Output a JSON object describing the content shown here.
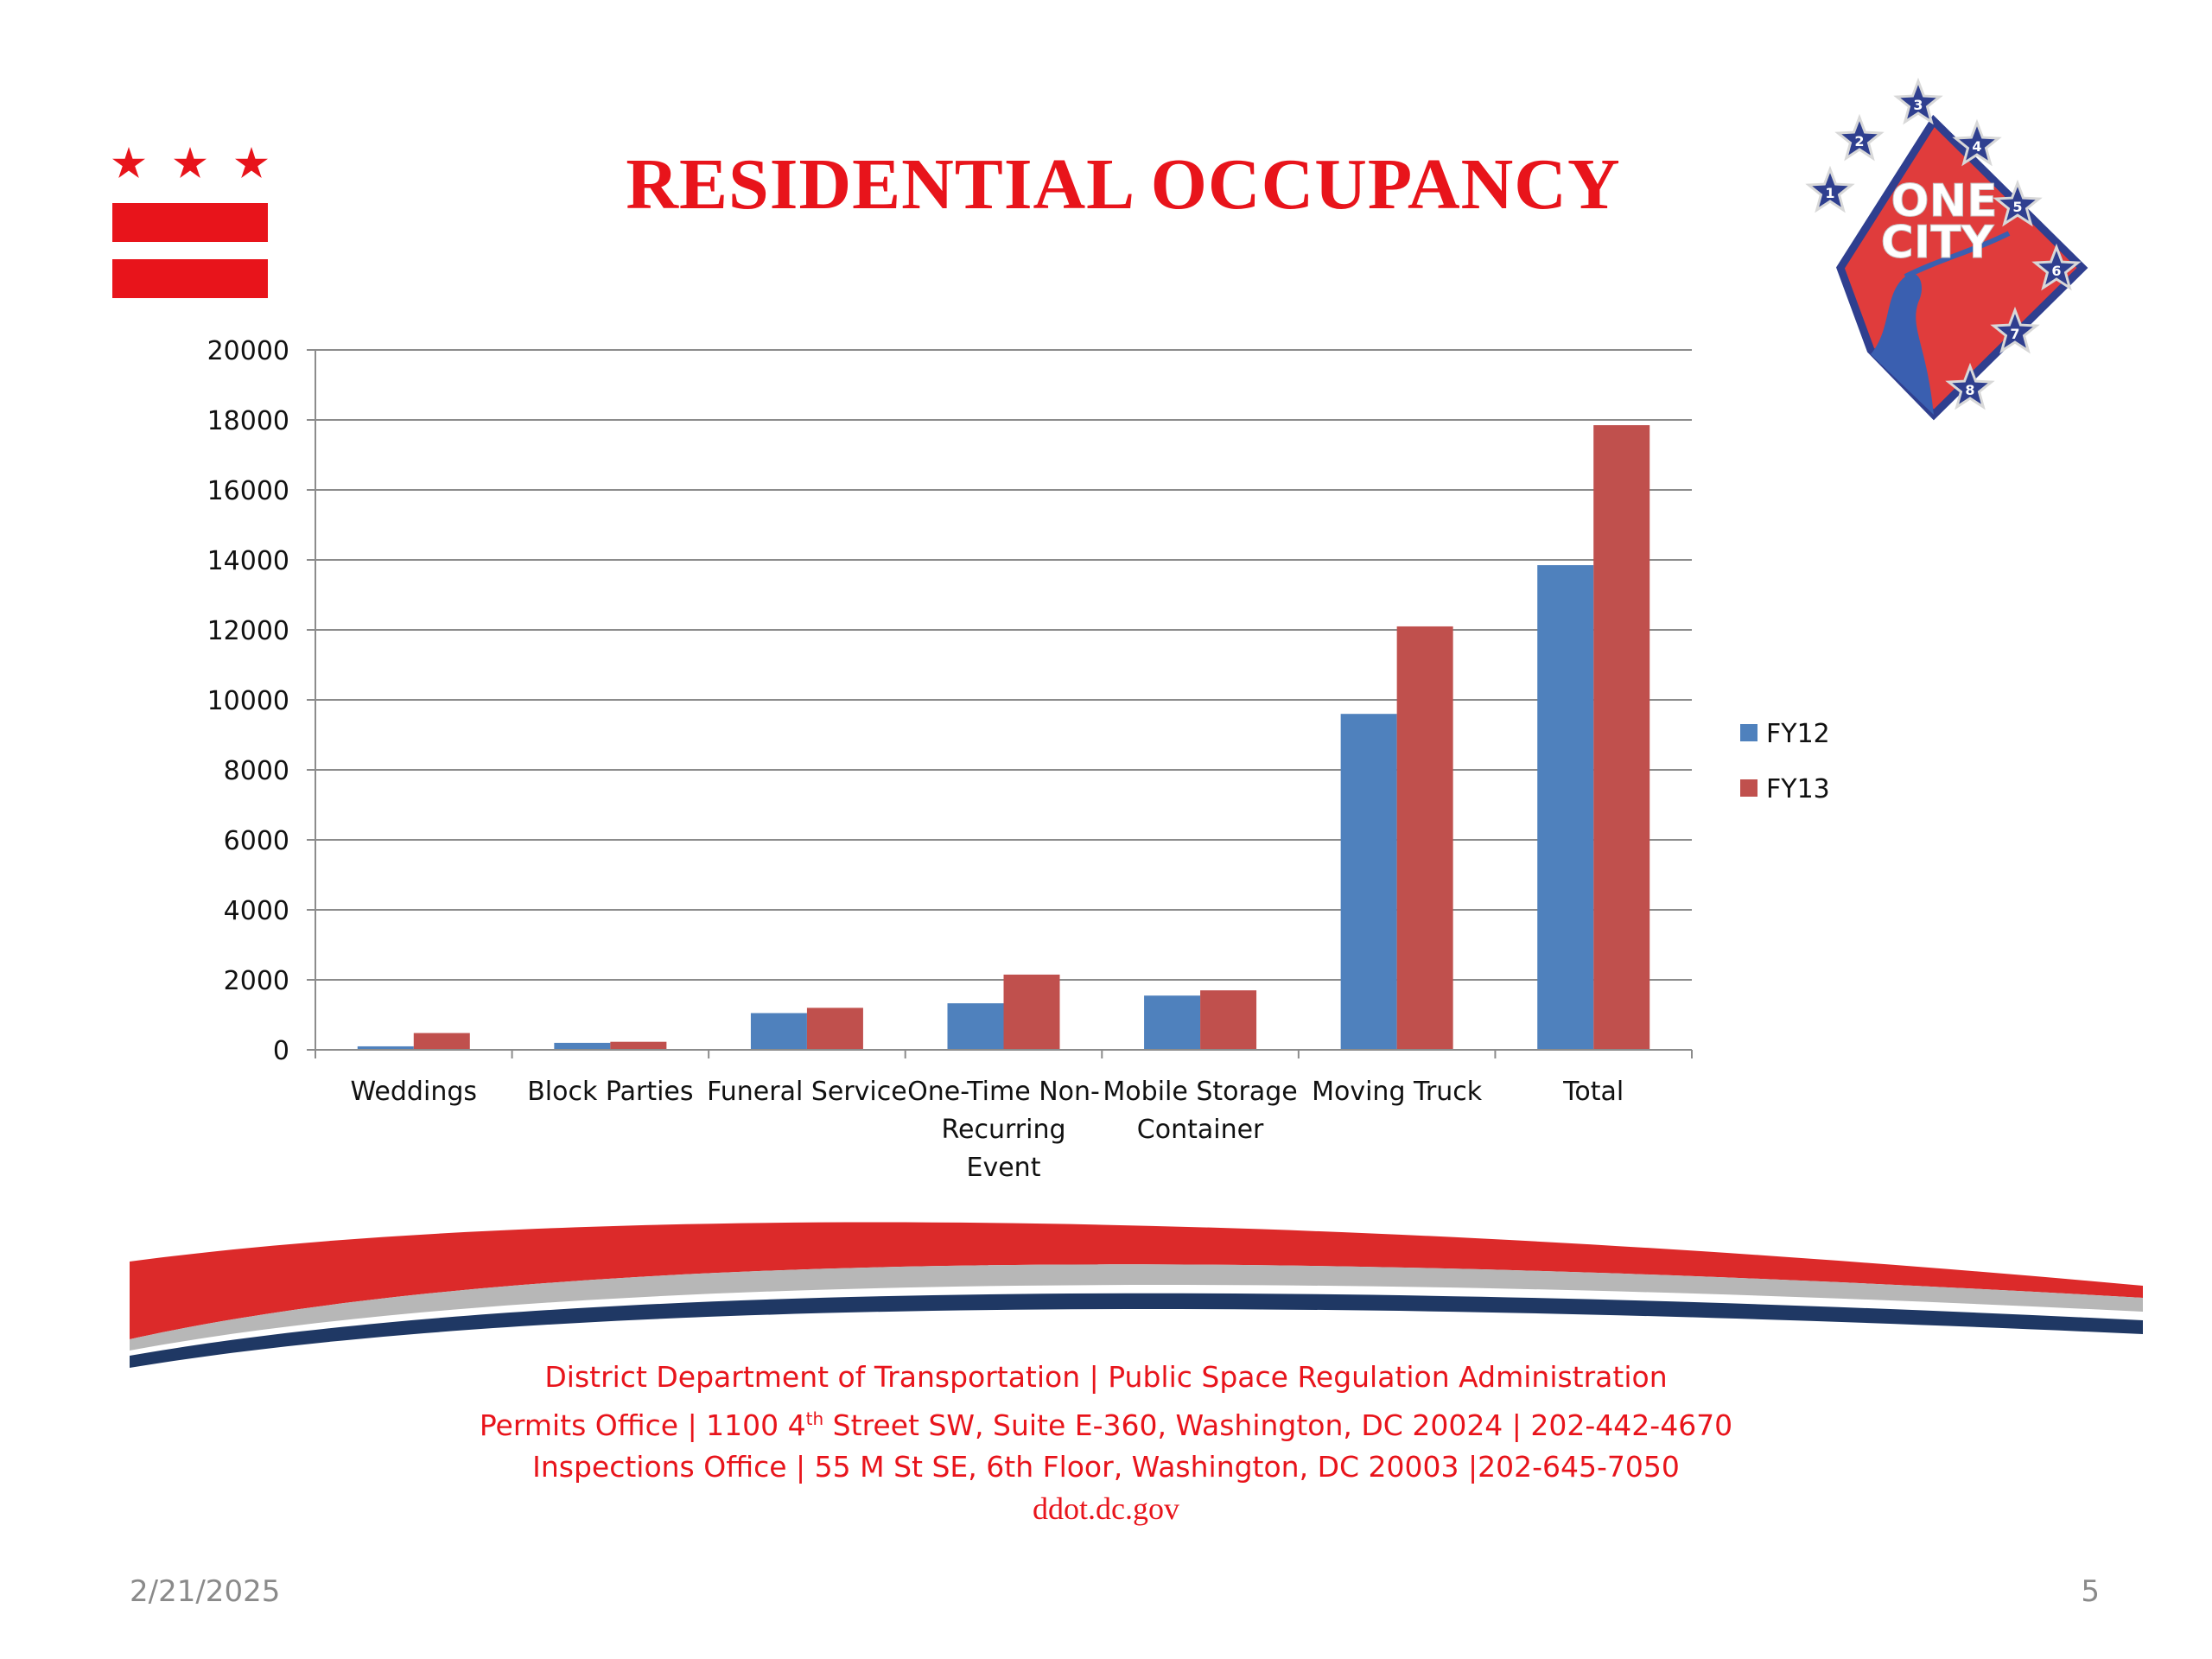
{
  "title": "RESIDENTIAL OCCUPANCY",
  "logo": {
    "text_line1": "ONE",
    "text_line2": "CITY",
    "star_numbers": [
      "1",
      "2",
      "3",
      "4",
      "5",
      "6",
      "7",
      "8"
    ]
  },
  "colors": {
    "title": "#e8141b",
    "fy12": "#4f81bd",
    "fy13": "#c0504d",
    "grid": "#8c8c8c",
    "navy": "#1f3864"
  },
  "chart_data": {
    "type": "bar",
    "categories": [
      [
        "Weddings"
      ],
      [
        "Block Parties"
      ],
      [
        "Funeral Service"
      ],
      [
        "One-Time Non-",
        "Recurring",
        "Event"
      ],
      [
        "Mobile Storage",
        "Container"
      ],
      [
        "Moving Truck"
      ],
      [
        "Total"
      ]
    ],
    "series": [
      {
        "name": "FY12",
        "color": "#4f81bd",
        "values": [
          100,
          200,
          1050,
          1330,
          1550,
          9600,
          13850
        ]
      },
      {
        "name": "FY13",
        "color": "#c0504d",
        "values": [
          480,
          230,
          1200,
          2150,
          1700,
          12100,
          17850
        ]
      }
    ],
    "ylim": [
      0,
      20000
    ],
    "yticks": [
      0,
      2000,
      4000,
      6000,
      8000,
      10000,
      12000,
      14000,
      16000,
      18000,
      20000
    ],
    "grid": true,
    "legend_position": "right"
  },
  "footer": {
    "line1": "District Department of Transportation | Public Space Regulation Administration",
    "line2_pre": "Permits Office | 1100 4",
    "line2_sup": "th",
    "line2_post": " Street SW, Suite E-360, Washington, DC 20024 | 202-442-4670",
    "line3": "Inspections Office | 55 M St SE, 6th Floor, Washington, DC 20003  |202-645-7050",
    "url": "ddot.dc.gov"
  },
  "date": "2/21/2025",
  "slide_number": "5"
}
